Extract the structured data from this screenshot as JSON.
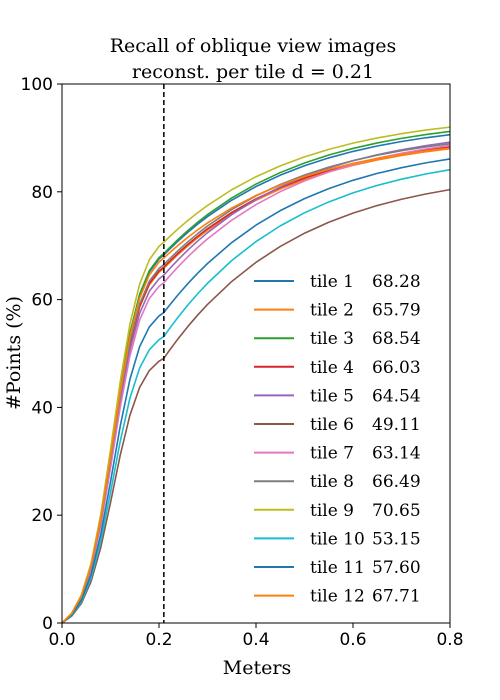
{
  "chart_data": {
    "type": "line",
    "title": [
      "Recall of oblique view images",
      "reconst. per tile d = 0.21"
    ],
    "xlabel": "Meters",
    "ylabel": "#Points (%)",
    "xlim": [
      0.0,
      0.8
    ],
    "ylim": [
      0,
      100
    ],
    "xticks": [
      "0.0",
      "0.2",
      "0.4",
      "0.6",
      "0.8"
    ],
    "yticks": [
      "0",
      "20",
      "40",
      "60",
      "80",
      "100"
    ],
    "grid": false,
    "legend_position": "lower-right",
    "threshold": 0.21,
    "x": [
      0.0,
      0.02,
      0.04,
      0.06,
      0.08,
      0.1,
      0.12,
      0.14,
      0.16,
      0.18,
      0.2,
      0.21,
      0.22,
      0.24,
      0.26,
      0.28,
      0.3,
      0.35,
      0.4,
      0.45,
      0.5,
      0.55,
      0.6,
      0.65,
      0.7,
      0.75,
      0.8
    ],
    "series": [
      {
        "name": "tile 1",
        "recall": "68.28",
        "color": "#1f77b4",
        "y_at_d": 68.28,
        "y_end": 90.6
      },
      {
        "name": "tile 2",
        "recall": "65.79",
        "color": "#ff7f0e",
        "y_at_d": 65.79,
        "y_end": 88.0
      },
      {
        "name": "tile 3",
        "recall": "68.54",
        "color": "#2ca02c",
        "y_at_d": 68.54,
        "y_end": 91.2
      },
      {
        "name": "tile 4",
        "recall": "66.03",
        "color": "#d62728",
        "y_at_d": 66.03,
        "y_end": 88.3
      },
      {
        "name": "tile 5",
        "recall": "64.54",
        "color": "#9467bd",
        "y_at_d": 64.54,
        "y_end": 89.2
      },
      {
        "name": "tile 6",
        "recall": "49.11",
        "color": "#8c564b",
        "y_at_d": 49.11,
        "y_end": 80.4
      },
      {
        "name": "tile 7",
        "recall": "63.14",
        "color": "#e377c2",
        "y_at_d": 63.14,
        "y_end": 88.6
      },
      {
        "name": "tile 8",
        "recall": "66.49",
        "color": "#7f7f7f",
        "y_at_d": 66.49,
        "y_end": 88.9
      },
      {
        "name": "tile 9",
        "recall": "70.65",
        "color": "#bcbd22",
        "y_at_d": 70.65,
        "y_end": 92.0
      },
      {
        "name": "tile 10",
        "recall": "53.15",
        "color": "#17becf",
        "y_at_d": 53.15,
        "y_end": 84.1
      },
      {
        "name": "tile 11",
        "recall": "57.60",
        "color": "#1f77b4",
        "y_at_d": 57.6,
        "y_end": 86.1
      },
      {
        "name": "tile 12",
        "recall": "67.71",
        "color": "#ff7f0e",
        "y_at_d": 67.71,
        "y_end": 88.1
      }
    ]
  }
}
